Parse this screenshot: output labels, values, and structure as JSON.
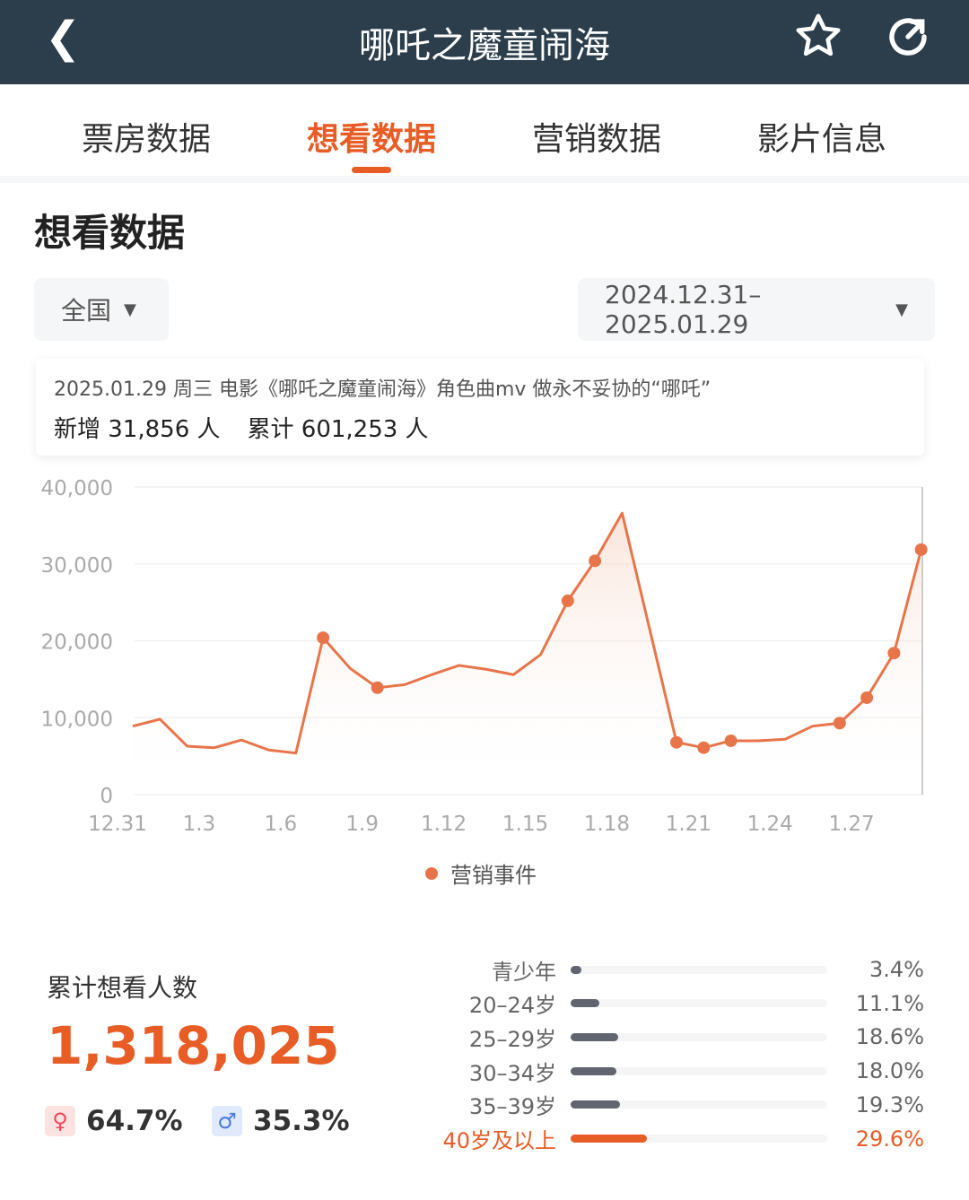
{
  "header": {
    "title": "哪吒之魔童闹海",
    "back_icon": "chevron-left-icon",
    "star_icon": "star-icon",
    "refresh_icon": "refresh-icon"
  },
  "tabs": [
    {
      "label": "票房数据"
    },
    {
      "label": "想看数据",
      "active": true
    },
    {
      "label": "营销数据"
    },
    {
      "label": "影片信息"
    }
  ],
  "section_title": "想看数据",
  "filters": {
    "region": "全国",
    "date_range": "2024.12.31–2025.01.29"
  },
  "tooltip": {
    "line1": "2025.01.29 周三 电影《哪吒之魔童闹海》角色曲mv 做永不妥协的“哪吒”",
    "new": "新增 31,856 人",
    "total": "累计 601,253 人"
  },
  "colors": {
    "accent": "#e85c26",
    "line": "#e8754a",
    "header_bg": "#2c3e4c",
    "bar": "#606570"
  },
  "chart_data": {
    "type": "area",
    "x": [
      "12.31",
      "1.1",
      "1.2",
      "1.3",
      "1.4",
      "1.5",
      "1.6",
      "1.7",
      "1.8",
      "1.9",
      "1.10",
      "1.11",
      "1.12",
      "1.13",
      "1.14",
      "1.15",
      "1.16",
      "1.17",
      "1.18",
      "1.19",
      "1.20",
      "1.21",
      "1.22",
      "1.23",
      "1.24",
      "1.25",
      "1.26",
      "1.27",
      "1.28",
      "1.29"
    ],
    "values": [
      8900,
      9800,
      6300,
      6100,
      7100,
      5800,
      5400,
      20400,
      16400,
      13900,
      14300,
      15600,
      16800,
      16300,
      15600,
      18200,
      25200,
      30400,
      36600,
      21700,
      6800,
      6100,
      7000,
      7000,
      7200,
      8900,
      9300,
      12600,
      18400,
      31856
    ],
    "marketing_event_dates": [
      "1.7",
      "1.9",
      "1.16",
      "1.17",
      "1.20",
      "1.21",
      "1.22",
      "1.26",
      "1.27",
      "1.28",
      "1.29"
    ],
    "x_ticks": [
      "12.31",
      "1.3",
      "1.6",
      "1.9",
      "1.12",
      "1.15",
      "1.18",
      "1.21",
      "1.24",
      "1.27"
    ],
    "y_ticks": [
      "0",
      "10,000",
      "20,000",
      "30,000",
      "40,000"
    ],
    "ylim": [
      0,
      40000
    ],
    "grid": true,
    "legend": [
      {
        "name": "营销事件"
      }
    ],
    "legend_position": "bottom"
  },
  "summary": {
    "label": "累计想看人数",
    "total": "1,318,025",
    "female": "64.7%",
    "male": "35.3%",
    "female_icon": "female-icon",
    "male_icon": "male-icon"
  },
  "ages": [
    {
      "label": "青少年",
      "pct": "3.4%",
      "value": 3.4
    },
    {
      "label": "20–24岁",
      "pct": "11.1%",
      "value": 11.1
    },
    {
      "label": "25–29岁",
      "pct": "18.6%",
      "value": 18.6
    },
    {
      "label": "30–34岁",
      "pct": "18.0%",
      "value": 18.0
    },
    {
      "label": "35–39岁",
      "pct": "19.3%",
      "value": 19.3
    },
    {
      "label": "40岁及以上",
      "pct": "29.6%",
      "value": 29.6,
      "highlight": true
    }
  ]
}
